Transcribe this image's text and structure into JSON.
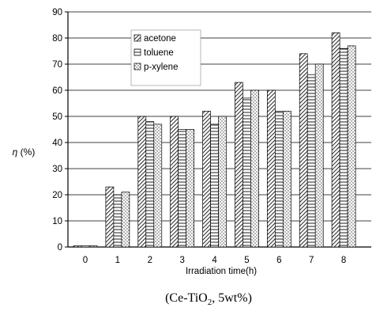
{
  "chart_data": {
    "type": "bar",
    "title": "",
    "xlabel": "Irradiation time(h)",
    "ylabel": "η (%)",
    "ylim": [
      0,
      90
    ],
    "yticks": [
      0,
      10,
      20,
      30,
      40,
      50,
      60,
      70,
      80,
      90
    ],
    "grid": true,
    "legend_position": "top-left",
    "categories": [
      "0",
      "1",
      "2",
      "3",
      "4",
      "5",
      "6",
      "7",
      "8"
    ],
    "series": [
      {
        "name": "acetone",
        "values": [
          0,
          23,
          50,
          50,
          52,
          63,
          60,
          74,
          82
        ]
      },
      {
        "name": "toluene",
        "values": [
          0,
          20,
          48,
          45,
          47,
          57,
          52,
          66,
          76
        ]
      },
      {
        "name": "p-xylene",
        "values": [
          0,
          21,
          47,
          45,
          50,
          60,
          52,
          70,
          77
        ]
      }
    ]
  },
  "caption": {
    "main": "(Ce-TiO",
    "sub": "2",
    "rest": ", 5wt%)"
  }
}
